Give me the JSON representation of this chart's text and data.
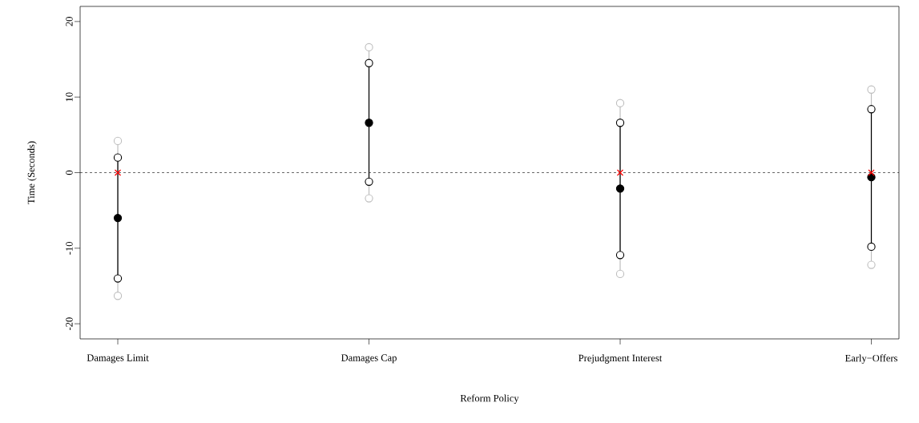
{
  "chart_data": {
    "type": "scatter",
    "xlabel": "Reform Policy",
    "ylabel": "Time (Seconds)",
    "categories": [
      "Damages Limit",
      "Damages Cap",
      "Prejudgment Interest",
      "Early−Offers"
    ],
    "ylim": [
      -22,
      22
    ],
    "yticks": [
      -20,
      -10,
      0,
      10,
      20
    ],
    "series": [
      {
        "type": "line",
        "color": "#bebebe",
        "x": [
          "Damages Limit",
          "Damages Limit"
        ],
        "values": [
          -16.3,
          4.2
        ]
      },
      {
        "type": "line",
        "color": "#bebebe",
        "x": [
          "Damages Cap",
          "Damages Cap"
        ],
        "values": [
          -3.4,
          16.6
        ]
      },
      {
        "type": "line",
        "color": "#bebebe",
        "x": [
          "Prejudgment Interest",
          "Prejudgment Interest"
        ],
        "values": [
          -13.4,
          9.2
        ]
      },
      {
        "type": "line",
        "color": "#bebebe",
        "x": [
          "Early−Offers",
          "Early−Offers"
        ],
        "values": [
          -12.2,
          11.0
        ]
      },
      {
        "type": "line",
        "color": "#000000",
        "x": [
          "Damages Limit",
          "Damages Limit"
        ],
        "values": [
          -14.0,
          2.0
        ]
      },
      {
        "type": "line",
        "color": "#000000",
        "x": [
          "Damages Cap",
          "Damages Cap"
        ],
        "values": [
          -1.2,
          14.5
        ]
      },
      {
        "type": "line",
        "color": "#000000",
        "x": [
          "Prejudgment Interest",
          "Prejudgment Interest"
        ],
        "values": [
          -10.9,
          6.6
        ]
      },
      {
        "type": "line",
        "color": "#000000",
        "x": [
          "Early−Offers",
          "Early−Offers"
        ],
        "values": [
          -9.8,
          8.4
        ]
      },
      {
        "color": "#bebebe",
        "marker": "circle",
        "values": [
          4.2,
          16.6,
          9.2,
          11.0
        ]
      },
      {
        "color": "#bebebe",
        "marker": "circle",
        "values": [
          -16.3,
          -3.4,
          -13.4,
          -12.2
        ]
      },
      {
        "color": "#000000",
        "marker": "circle",
        "values": [
          2.0,
          14.5,
          6.6,
          8.4
        ]
      },
      {
        "color": "#000000",
        "marker": "circle",
        "values": [
          -14.0,
          -1.2,
          -10.9,
          -9.8
        ]
      },
      {
        "color": "#000000",
        "marker": "circle",
        "values": [
          -6.0,
          6.6,
          -2.1,
          -0.6
        ]
      },
      {
        "color": "#ff0000",
        "marker": "cross",
        "values": [
          0,
          null,
          0,
          0
        ]
      }
    ],
    "ref_lines": [
      {
        "axis": "y",
        "value": 0,
        "line_style": "dashed",
        "color": "#000000"
      }
    ]
  }
}
